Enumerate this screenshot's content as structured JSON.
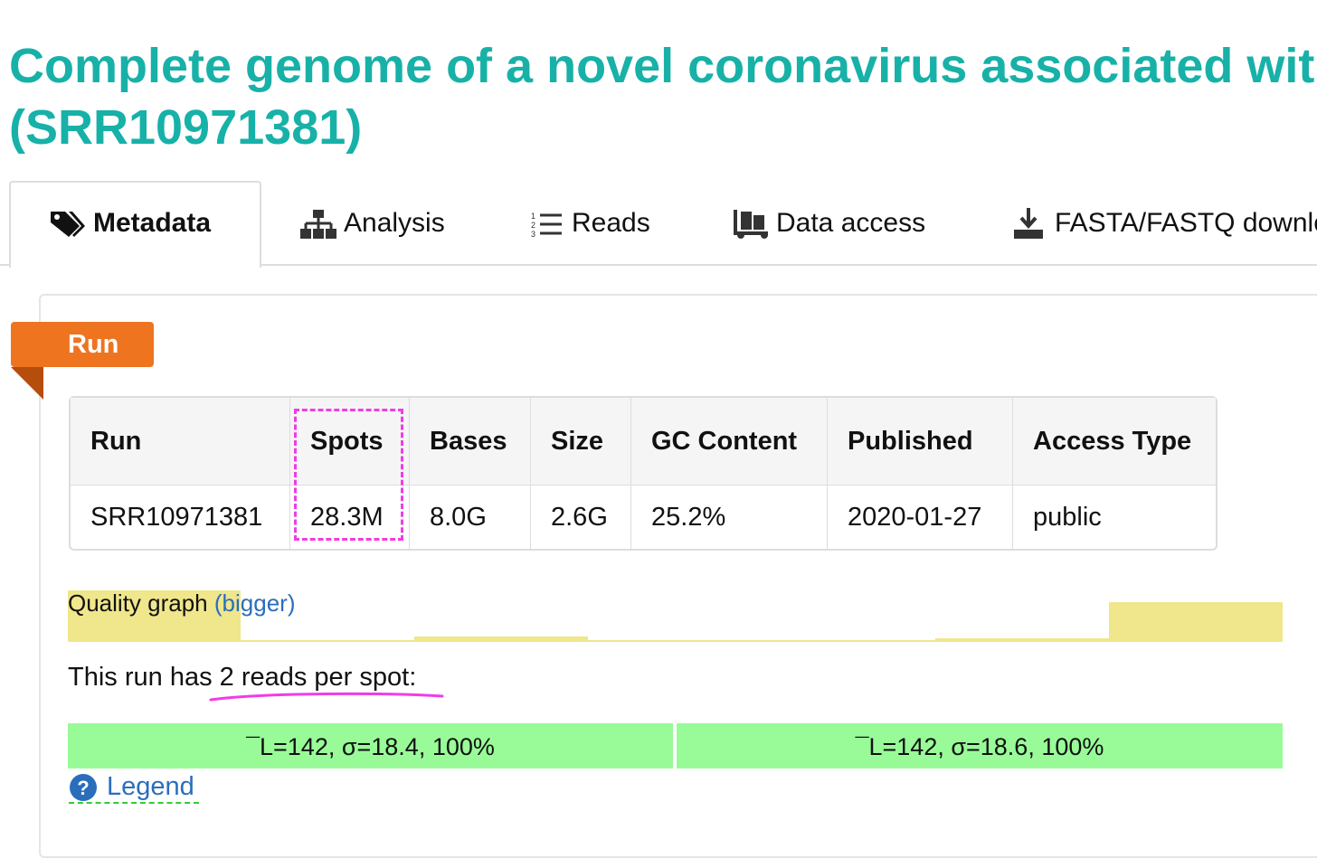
{
  "header": {
    "title_line1": "Complete genome of a novel coronavirus associated with",
    "title_line2": "(SRR10971381)"
  },
  "tabs": [
    "Metadata",
    "Analysis",
    "Reads",
    "Data access",
    "FASTA/FASTQ download"
  ],
  "section": {
    "label": "Run"
  },
  "table": {
    "headers": [
      "Run",
      "Spots",
      "Bases",
      "Size",
      "GC Content",
      "Published",
      "Access Type"
    ],
    "rows": [
      [
        "SRR10971381",
        "28.3M",
        "8.0G",
        "2.6G",
        "25.2%",
        "2020-01-27",
        "public"
      ]
    ]
  },
  "quality": {
    "label": "Quality graph",
    "link": "(bigger)"
  },
  "reads": {
    "intro": "This run has 2 reads per spot:",
    "bars": [
      "¯L=142, σ=18.4, 100%",
      "¯L=142, σ=18.6, 100%"
    ]
  },
  "legend": {
    "label": "Legend"
  }
}
